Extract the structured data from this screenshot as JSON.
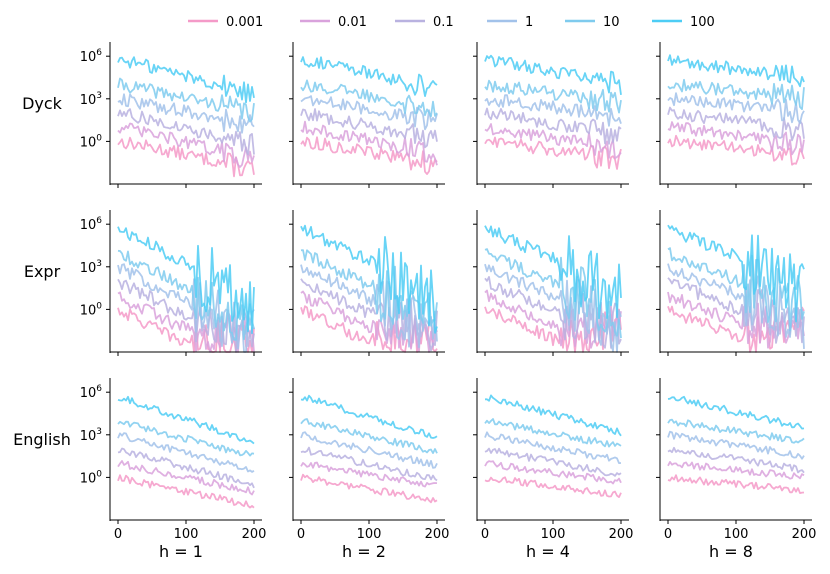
{
  "chart_data": {
    "type": "line",
    "title": "",
    "xlabel": "",
    "ylabel": "",
    "yscale": "log",
    "xlim": [
      0,
      200
    ],
    "ylim": [
      0.001,
      10000000
    ],
    "x_ticks": [
      0,
      100,
      200
    ],
    "y_ticks": [
      {
        "value": 1,
        "label_base": "10",
        "label_exp": "0"
      },
      {
        "value": 1000,
        "label_base": "10",
        "label_exp": "3"
      },
      {
        "value": 1000000,
        "label_base": "10",
        "label_exp": "6"
      }
    ],
    "rows": [
      "Dyck",
      "Expr",
      "English"
    ],
    "columns": [
      "h = 1",
      "h = 2",
      "h = 4",
      "h = 8"
    ],
    "legend_position": "top-center",
    "series": [
      {
        "name": "0.001",
        "color": "#f49ac8"
      },
      {
        "name": "0.01",
        "color": "#d9a2dc"
      },
      {
        "name": "0.1",
        "color": "#b9b2e0"
      },
      {
        "name": "1",
        "color": "#a2c2ea"
      },
      {
        "name": "10",
        "color": "#7fcbee"
      },
      {
        "name": "100",
        "color": "#4dcdf5"
      }
    ],
    "series_start_values": {
      "Dyck": [
        1,
        10,
        100,
        1000,
        10000,
        600000
      ],
      "Expr": [
        1,
        10,
        100,
        1000,
        10000,
        500000
      ],
      "English": [
        1,
        10,
        100,
        1000,
        10000,
        500000
      ]
    },
    "series_end_values_h1": {
      "Dyck": [
        0.01,
        0.05,
        0.5,
        10,
        100,
        2000
      ],
      "Expr": [
        0.01,
        0.01,
        0.01,
        0.01,
        0.1,
        1
      ],
      "English": [
        0.01,
        0.1,
        0.3,
        3,
        30,
        300
      ]
    }
  }
}
